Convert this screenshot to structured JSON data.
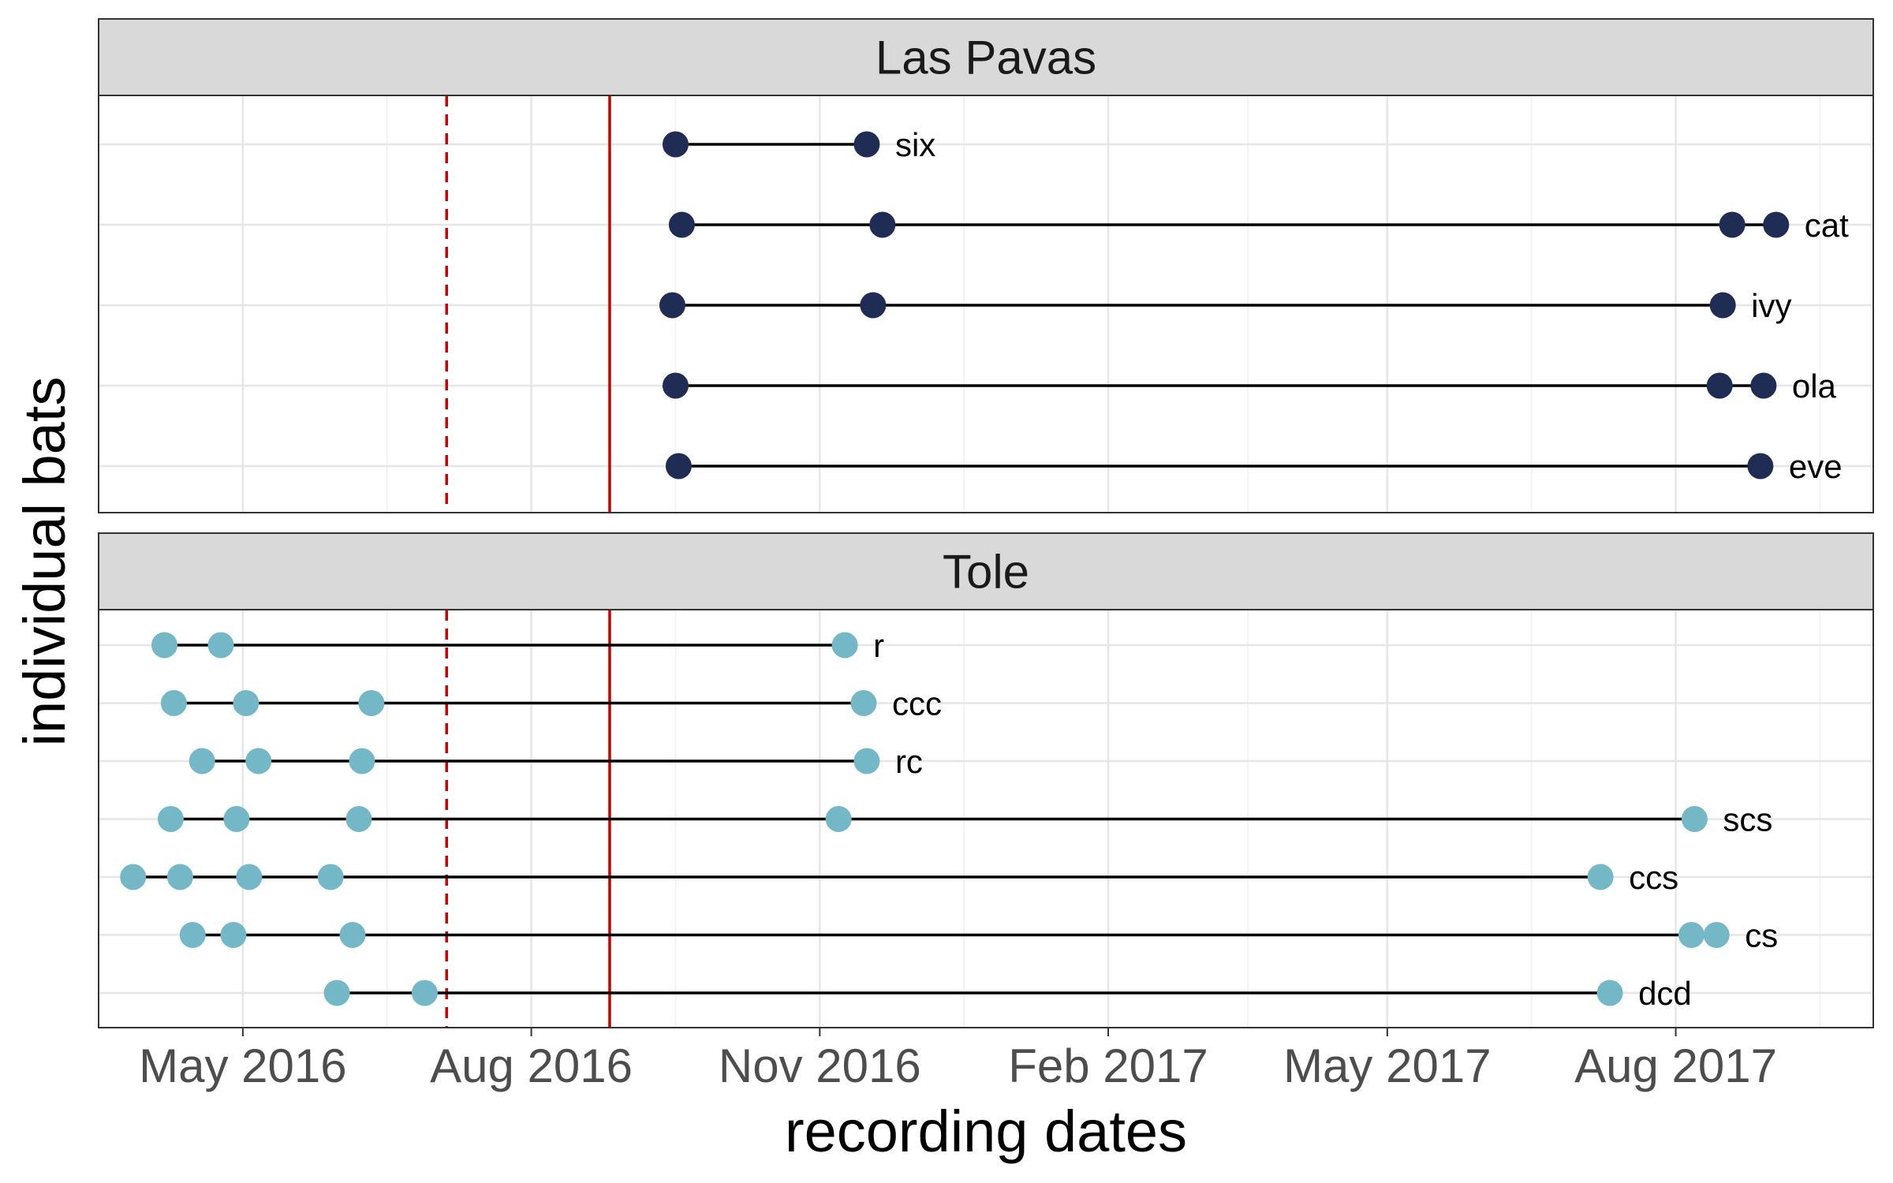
{
  "chart_data": {
    "type": "scatter",
    "xlabel": "recording dates",
    "ylabel": "individual bats",
    "x_ticks": [
      "May 2016",
      "Aug 2016",
      "Nov 2016",
      "Feb 2017",
      "May 2017",
      "Aug 2017"
    ],
    "x_tick_dates": [
      "2016-05-01",
      "2016-08-01",
      "2016-11-01",
      "2017-02-01",
      "2017-05-01",
      "2017-08-01"
    ],
    "xlim": [
      "2016-03-16",
      "2017-10-03"
    ],
    "grid": true,
    "reference_lines": [
      {
        "date": "2016-07-05",
        "style": "dashed",
        "color": "#cc0000"
      },
      {
        "date": "2016-08-26",
        "style": "solid",
        "color": "#cc0000"
      }
    ],
    "facets": [
      {
        "title": "Las Pavas",
        "color": "#1f2d54",
        "bats": [
          {
            "id": "six",
            "dates": [
              "2016-09-16",
              "2016-11-16"
            ]
          },
          {
            "id": "cat",
            "dates": [
              "2016-09-18",
              "2016-11-21",
              "2017-08-19",
              "2017-09-02"
            ]
          },
          {
            "id": "ivy",
            "dates": [
              "2016-09-15",
              "2016-11-18",
              "2017-08-16"
            ]
          },
          {
            "id": "ola",
            "dates": [
              "2016-09-16",
              "2017-08-15",
              "2017-08-29"
            ]
          },
          {
            "id": "eve",
            "dates": [
              "2016-09-17",
              "2017-08-28"
            ]
          }
        ]
      },
      {
        "title": "Tole",
        "color": "#74b8c8",
        "bats": [
          {
            "id": "r",
            "dates": [
              "2016-04-06",
              "2016-04-24",
              "2016-11-09"
            ]
          },
          {
            "id": "ccc",
            "dates": [
              "2016-04-09",
              "2016-05-02",
              "2016-06-11",
              "2016-11-15"
            ]
          },
          {
            "id": "rc",
            "dates": [
              "2016-04-18",
              "2016-05-06",
              "2016-06-08",
              "2016-11-16"
            ]
          },
          {
            "id": "scs",
            "dates": [
              "2016-04-08",
              "2016-04-29",
              "2016-06-07",
              "2016-11-07",
              "2017-08-07"
            ]
          },
          {
            "id": "ccs",
            "dates": [
              "2016-03-27",
              "2016-04-11",
              "2016-05-03",
              "2016-05-29",
              "2017-07-08"
            ]
          },
          {
            "id": "cs",
            "dates": [
              "2016-04-15",
              "2016-04-28",
              "2016-06-05",
              "2017-08-06",
              "2017-08-14"
            ]
          },
          {
            "id": "dcd",
            "dates": [
              "2016-05-31",
              "2016-06-28",
              "2017-07-11"
            ]
          }
        ]
      }
    ]
  }
}
